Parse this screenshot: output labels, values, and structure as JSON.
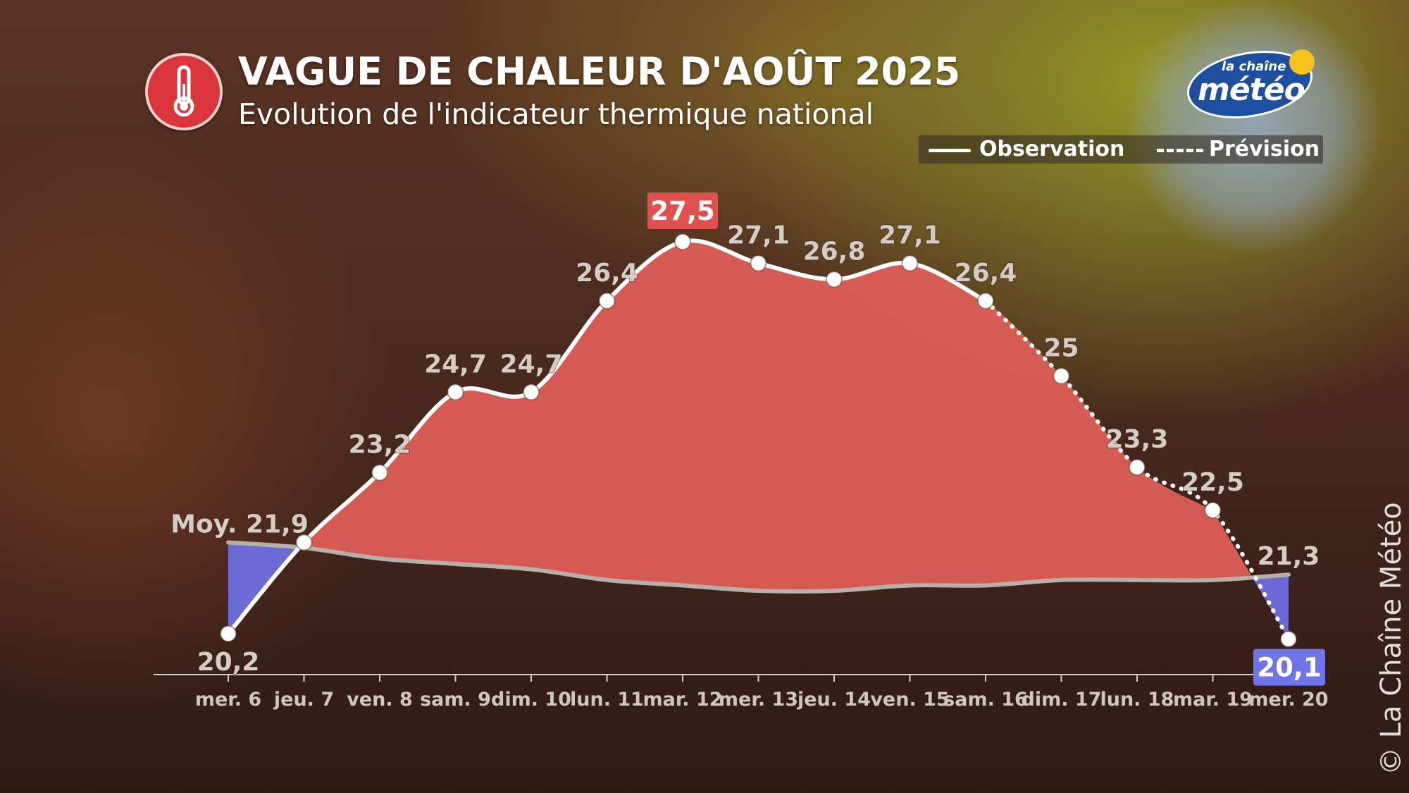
{
  "title": "VAGUE DE CHALEUR D'AOÛT 2025",
  "subtitle": "Evolution de l'indicateur thermique national",
  "logo": {
    "top": "la chaîne",
    "main": "météo"
  },
  "legend": {
    "observation": "Observation",
    "prevision": "Prévision"
  },
  "copyright": "© La Chaîne Météo",
  "colors": {
    "warm_fill": "#e05f58",
    "cool_fill": "#6f6ee0",
    "line": "#ffffff",
    "normal_line": "#b5b0aa",
    "max_badge": "#e0504f",
    "min_badge": "#6f74e8"
  },
  "chart_data": {
    "type": "line",
    "categories": [
      "mer. 6",
      "jeu. 7",
      "ven. 8",
      "sam. 9",
      "dim. 10",
      "lun. 11",
      "mar. 12",
      "mer. 13",
      "jeu. 14",
      "ven. 15",
      "sam. 16",
      "dim. 17",
      "lun. 18",
      "mar. 19",
      "mer. 20"
    ],
    "series": [
      {
        "name": "Observation",
        "values": [
          20.2,
          21.9,
          23.2,
          24.7,
          24.7,
          26.4,
          27.5,
          27.1,
          26.8,
          27.1,
          26.4,
          null,
          null,
          null,
          null
        ]
      },
      {
        "name": "Prévision",
        "values": [
          null,
          null,
          null,
          null,
          null,
          null,
          null,
          null,
          null,
          null,
          26.4,
          25,
          23.3,
          22.5,
          20.1
        ]
      }
    ],
    "normal": {
      "values": [
        21.9,
        21.8,
        21.6,
        21.5,
        21.4,
        21.2,
        21.1,
        21.0,
        21.0,
        21.1,
        21.1,
        21.2,
        21.2,
        21.2,
        21.3
      ],
      "start_label": "Moy. 21,9",
      "end_label": "21,3"
    },
    "data_labels": [
      "20,2",
      "",
      "23,2",
      "24,7",
      "24,7",
      "26,4",
      "27,5",
      "27,1",
      "26,8",
      "27,1",
      "26,4",
      "25",
      "23,3",
      "22,5",
      "20,1"
    ],
    "max_label": "27,5",
    "min_label": "20,1",
    "ylim": [
      19.6,
      28.5
    ]
  }
}
